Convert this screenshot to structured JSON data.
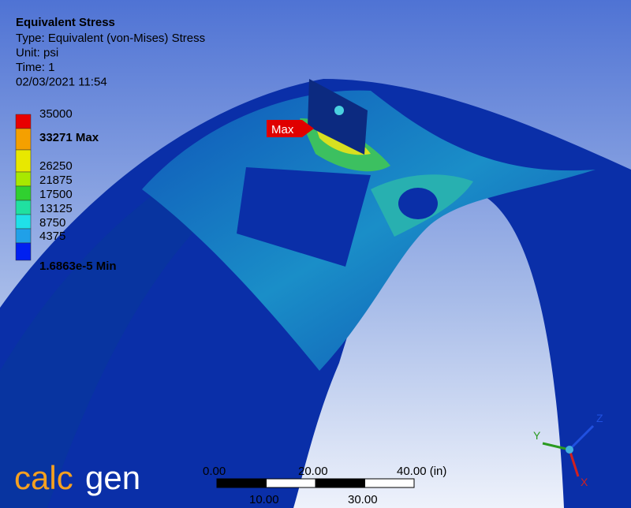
{
  "header": {
    "title": "Equivalent Stress",
    "lines": [
      "Type: Equivalent (von-Mises) Stress",
      "Unit: psi",
      "Time: 1",
      "02/03/2021 11:54"
    ]
  },
  "legend": {
    "labels": [
      "35000",
      "33271 Max",
      "26250",
      "21875",
      "17500",
      "13125",
      "8750",
      "4375",
      "1.6863e-5 Min"
    ]
  },
  "probe": {
    "label": "Max"
  },
  "scale_bar": {
    "top_labels": [
      "0.00",
      "20.00",
      "40.00 (in)"
    ],
    "bottom_labels": [
      "10.00",
      "30.00"
    ]
  },
  "triad": {
    "y": "Y",
    "z": "Z",
    "x": "X"
  },
  "logo": {
    "part1": "calc",
    "part2": "gen"
  }
}
